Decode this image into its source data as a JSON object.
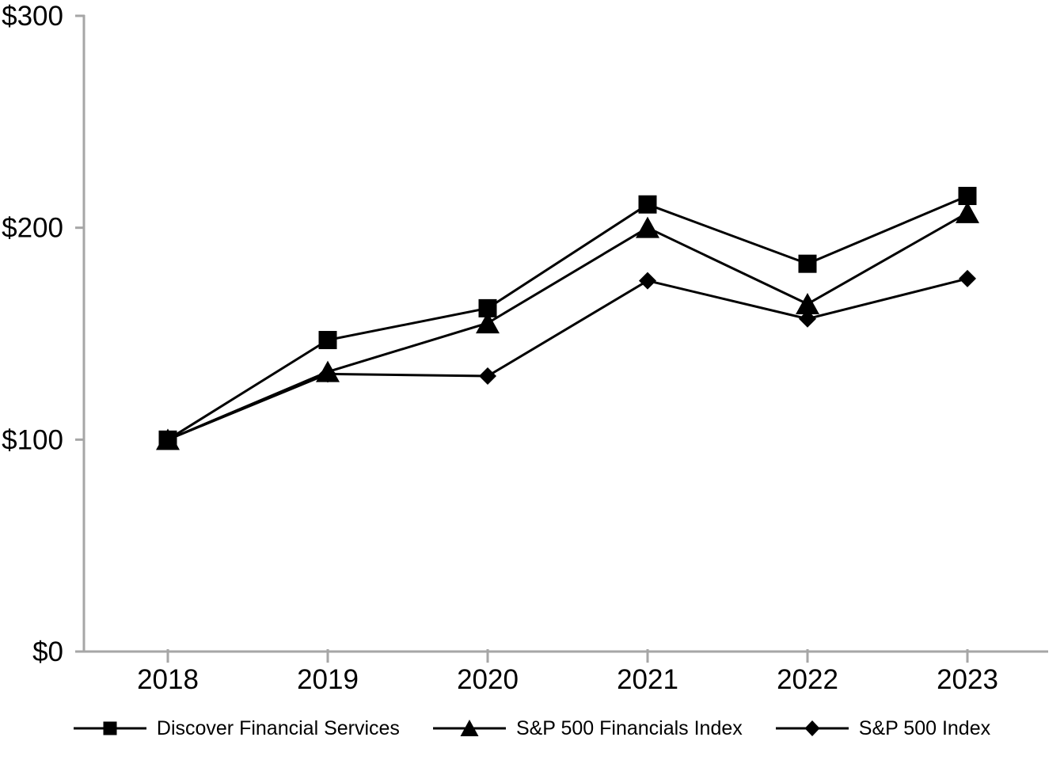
{
  "chart_data": {
    "type": "line",
    "x": [
      2018,
      2019,
      2020,
      2021,
      2022,
      2023
    ],
    "xtick_labels": [
      "2018",
      "2019",
      "2020",
      "2021",
      "2022",
      "2023"
    ],
    "yticks": [
      0,
      100,
      200,
      300
    ],
    "ytick_labels": [
      "$0",
      "$100",
      "$200",
      "$300"
    ],
    "ylim": [
      0,
      300
    ],
    "grid": false,
    "legend_position": "bottom",
    "series": [
      {
        "name": "Discover Financial Services",
        "marker": "square",
        "values": [
          100,
          147,
          162,
          211,
          183,
          215
        ]
      },
      {
        "name": "S&P 500 Financials Index",
        "marker": "triangle",
        "values": [
          100,
          132,
          155,
          200,
          164,
          207
        ]
      },
      {
        "name": "S&P 500 Index",
        "marker": "diamond",
        "values": [
          100,
          131,
          130,
          175,
          157,
          176
        ]
      }
    ],
    "colors": {
      "line": "#000000",
      "marker": "#000000",
      "axis": "#a6a6a6",
      "text": "#000000",
      "background": "#ffffff"
    }
  }
}
